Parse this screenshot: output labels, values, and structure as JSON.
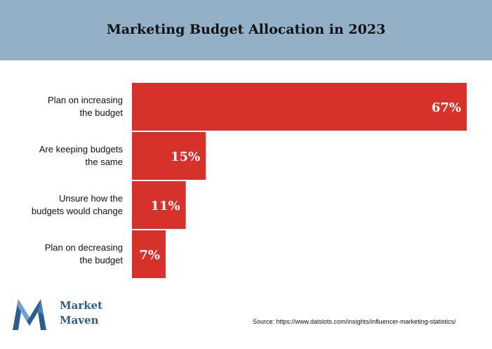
{
  "title": "Marketing Budget Allocation in 2023",
  "colors": {
    "header": "#92b0c8",
    "bar": "#d6312a",
    "bar_stroke": "#ffffff"
  },
  "chart_data": {
    "type": "bar",
    "orientation": "horizontal",
    "categories": [
      [
        "Plan on increasing",
        "the budget"
      ],
      [
        "Are keeping budgets",
        "the same"
      ],
      [
        "Unsure how the",
        "budgets would change"
      ],
      [
        "Plan on decreasing",
        "the budget"
      ]
    ],
    "values": [
      67,
      15,
      11,
      7
    ],
    "data_labels": [
      "67%",
      "15%",
      "11%",
      "7%"
    ],
    "xlim": [
      0,
      67
    ],
    "grid": false
  },
  "source": "Source: https://www.datslots.com/insights/influencer-marketing-statistics/",
  "logo": {
    "line1": "Market",
    "line2": "Maven",
    "icon": "m-logo-icon"
  }
}
